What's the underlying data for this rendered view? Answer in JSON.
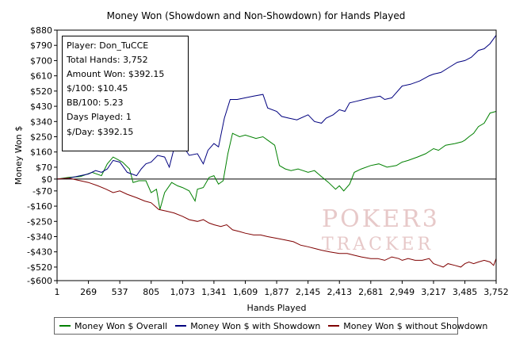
{
  "chart_data": {
    "type": "line",
    "title": "Money Won (Showdown and Non-Showdown) for Hands Played",
    "xlabel": "Hands Played",
    "ylabel": "Money Won $",
    "xlim": [
      1,
      3752
    ],
    "ylim": [
      -600,
      880
    ],
    "x_ticks": [
      1,
      269,
      537,
      805,
      1073,
      1341,
      1609,
      1877,
      2145,
      2413,
      2681,
      2949,
      3217,
      3485,
      3752
    ],
    "x_tick_labels": [
      "1",
      "269",
      "537",
      "805",
      "1,073",
      "1,341",
      "1,609",
      "1,877",
      "2,145",
      "2,413",
      "2,681",
      "2,949",
      "3,217",
      "3,485",
      "3,752"
    ],
    "y_ticks": [
      880,
      790,
      700,
      610,
      520,
      430,
      340,
      250,
      160,
      70,
      0,
      -70,
      -160,
      -250,
      -340,
      -430,
      -520,
      -600
    ],
    "y_tick_labels": [
      "$880",
      "$790",
      "$700",
      "$610",
      "$520",
      "$430",
      "$340",
      "$250",
      "$160",
      "$70",
      "$0",
      "-$70",
      "-$160",
      "-$250",
      "-$340",
      "-$430",
      "-$520",
      "-$600"
    ],
    "grid": false,
    "legend_position": "bottom",
    "series": [
      {
        "name": "Money Won $ Overall",
        "color": "#008000",
        "points": [
          [
            1,
            0
          ],
          [
            100,
            10
          ],
          [
            200,
            15
          ],
          [
            300,
            40
          ],
          [
            380,
            20
          ],
          [
            430,
            90
          ],
          [
            480,
            130
          ],
          [
            560,
            100
          ],
          [
            620,
            60
          ],
          [
            650,
            -20
          ],
          [
            700,
            -10
          ],
          [
            760,
            -10
          ],
          [
            805,
            -80
          ],
          [
            850,
            -60
          ],
          [
            880,
            -180
          ],
          [
            920,
            -80
          ],
          [
            980,
            -20
          ],
          [
            1030,
            -40
          ],
          [
            1073,
            -50
          ],
          [
            1130,
            -70
          ],
          [
            1180,
            -130
          ],
          [
            1200,
            -60
          ],
          [
            1250,
            -50
          ],
          [
            1300,
            10
          ],
          [
            1341,
            20
          ],
          [
            1380,
            -30
          ],
          [
            1420,
            -10
          ],
          [
            1460,
            150
          ],
          [
            1500,
            270
          ],
          [
            1560,
            250
          ],
          [
            1609,
            260
          ],
          [
            1700,
            240
          ],
          [
            1760,
            250
          ],
          [
            1800,
            230
          ],
          [
            1860,
            200
          ],
          [
            1900,
            80
          ],
          [
            1950,
            60
          ],
          [
            2000,
            50
          ],
          [
            2060,
            60
          ],
          [
            2145,
            40
          ],
          [
            2200,
            50
          ],
          [
            2250,
            20
          ],
          [
            2320,
            -20
          ],
          [
            2380,
            -60
          ],
          [
            2413,
            -40
          ],
          [
            2450,
            -70
          ],
          [
            2500,
            -30
          ],
          [
            2540,
            40
          ],
          [
            2600,
            60
          ],
          [
            2681,
            80
          ],
          [
            2750,
            90
          ],
          [
            2820,
            70
          ],
          [
            2900,
            80
          ],
          [
            2949,
            100
          ],
          [
            3000,
            110
          ],
          [
            3080,
            130
          ],
          [
            3150,
            150
          ],
          [
            3217,
            180
          ],
          [
            3260,
            170
          ],
          [
            3320,
            200
          ],
          [
            3400,
            210
          ],
          [
            3460,
            220
          ],
          [
            3485,
            230
          ],
          [
            3520,
            250
          ],
          [
            3560,
            270
          ],
          [
            3600,
            310
          ],
          [
            3650,
            330
          ],
          [
            3700,
            390
          ],
          [
            3752,
            400
          ]
        ]
      },
      {
        "name": "Money Won $ with Showdown",
        "color": "#00007f",
        "points": [
          [
            1,
            0
          ],
          [
            100,
            5
          ],
          [
            200,
            20
          ],
          [
            269,
            30
          ],
          [
            330,
            50
          ],
          [
            380,
            40
          ],
          [
            430,
            60
          ],
          [
            480,
            110
          ],
          [
            537,
            100
          ],
          [
            600,
            40
          ],
          [
            680,
            20
          ],
          [
            720,
            60
          ],
          [
            760,
            90
          ],
          [
            805,
            100
          ],
          [
            860,
            140
          ],
          [
            920,
            130
          ],
          [
            960,
            70
          ],
          [
            1000,
            180
          ],
          [
            1073,
            200
          ],
          [
            1130,
            140
          ],
          [
            1200,
            150
          ],
          [
            1250,
            90
          ],
          [
            1290,
            170
          ],
          [
            1341,
            210
          ],
          [
            1380,
            190
          ],
          [
            1430,
            360
          ],
          [
            1480,
            470
          ],
          [
            1540,
            470
          ],
          [
            1609,
            480
          ],
          [
            1680,
            490
          ],
          [
            1760,
            500
          ],
          [
            1800,
            420
          ],
          [
            1877,
            400
          ],
          [
            1920,
            370
          ],
          [
            1980,
            360
          ],
          [
            2050,
            350
          ],
          [
            2145,
            380
          ],
          [
            2200,
            340
          ],
          [
            2260,
            330
          ],
          [
            2300,
            360
          ],
          [
            2360,
            380
          ],
          [
            2413,
            410
          ],
          [
            2460,
            400
          ],
          [
            2500,
            450
          ],
          [
            2560,
            460
          ],
          [
            2620,
            470
          ],
          [
            2681,
            480
          ],
          [
            2760,
            490
          ],
          [
            2800,
            470
          ],
          [
            2860,
            480
          ],
          [
            2949,
            550
          ],
          [
            3020,
            560
          ],
          [
            3100,
            580
          ],
          [
            3180,
            610
          ],
          [
            3217,
            620
          ],
          [
            3280,
            630
          ],
          [
            3350,
            660
          ],
          [
            3420,
            690
          ],
          [
            3485,
            700
          ],
          [
            3540,
            720
          ],
          [
            3600,
            760
          ],
          [
            3650,
            770
          ],
          [
            3700,
            800
          ],
          [
            3752,
            850
          ]
        ]
      },
      {
        "name": "Money Won $ without Showdown",
        "color": "#7f0000",
        "points": [
          [
            1,
            0
          ],
          [
            100,
            5
          ],
          [
            200,
            -10
          ],
          [
            269,
            -20
          ],
          [
            350,
            -40
          ],
          [
            420,
            -60
          ],
          [
            480,
            -80
          ],
          [
            537,
            -70
          ],
          [
            600,
            -90
          ],
          [
            680,
            -110
          ],
          [
            750,
            -130
          ],
          [
            805,
            -140
          ],
          [
            870,
            -180
          ],
          [
            940,
            -190
          ],
          [
            1000,
            -200
          ],
          [
            1073,
            -220
          ],
          [
            1130,
            -240
          ],
          [
            1200,
            -250
          ],
          [
            1250,
            -240
          ],
          [
            1300,
            -260
          ],
          [
            1341,
            -270
          ],
          [
            1400,
            -280
          ],
          [
            1450,
            -270
          ],
          [
            1500,
            -300
          ],
          [
            1560,
            -310
          ],
          [
            1609,
            -320
          ],
          [
            1680,
            -330
          ],
          [
            1740,
            -330
          ],
          [
            1800,
            -340
          ],
          [
            1877,
            -350
          ],
          [
            1950,
            -360
          ],
          [
            2020,
            -370
          ],
          [
            2080,
            -390
          ],
          [
            2145,
            -400
          ],
          [
            2200,
            -410
          ],
          [
            2260,
            -420
          ],
          [
            2330,
            -430
          ],
          [
            2413,
            -440
          ],
          [
            2480,
            -440
          ],
          [
            2540,
            -450
          ],
          [
            2600,
            -460
          ],
          [
            2681,
            -470
          ],
          [
            2740,
            -470
          ],
          [
            2800,
            -480
          ],
          [
            2860,
            -460
          ],
          [
            2920,
            -470
          ],
          [
            2949,
            -480
          ],
          [
            3000,
            -470
          ],
          [
            3060,
            -480
          ],
          [
            3120,
            -480
          ],
          [
            3180,
            -470
          ],
          [
            3217,
            -500
          ],
          [
            3260,
            -510
          ],
          [
            3300,
            -520
          ],
          [
            3340,
            -500
          ],
          [
            3400,
            -510
          ],
          [
            3450,
            -520
          ],
          [
            3485,
            -500
          ],
          [
            3520,
            -490
          ],
          [
            3560,
            -500
          ],
          [
            3600,
            -490
          ],
          [
            3650,
            -480
          ],
          [
            3700,
            -490
          ],
          [
            3730,
            -510
          ],
          [
            3752,
            -470
          ]
        ]
      }
    ]
  },
  "stats": {
    "lines": [
      "Player: Don_TuCCE",
      "Total Hands: 3,752",
      "Amount Won: $392.15",
      "$/100: $10.45",
      "BB/100: 5.23",
      "Days Played: 1",
      "$/Day: $392.15"
    ]
  },
  "watermark": {
    "top": "POKER",
    "bottom": "TRACKER",
    "numeral": "3"
  }
}
